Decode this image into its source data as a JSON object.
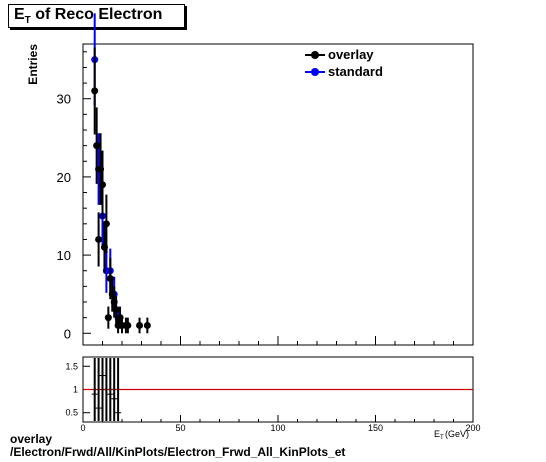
{
  "title": {
    "main": "E",
    "sub": "T",
    "rest": " of Reco Electron"
  },
  "footer": {
    "line1": "overlay",
    "line2": "/Electron/Frwd/All/KinPlots/Electron_Frwd_All_KinPlots_et"
  },
  "chart_data": [
    {
      "type": "scatter",
      "ylabel": "Entries",
      "xlabel": "",
      "xlim": [
        0,
        200
      ],
      "ylim": [
        -1.5,
        37
      ],
      "y_ticks": [
        0,
        10,
        20,
        30
      ],
      "legend": {
        "placement": "top-right",
        "entries": [
          "overlay",
          "standard"
        ]
      },
      "series": [
        {
          "name": "overlay",
          "color": "#000000",
          "points": [
            [
              6,
              31
            ],
            [
              7,
              24
            ],
            [
              8,
              12
            ],
            [
              9,
              21
            ],
            [
              10,
              19
            ],
            [
              11,
              11
            ],
            [
              12,
              14
            ],
            [
              13,
              2
            ],
            [
              14,
              7
            ],
            [
              15,
              5
            ],
            [
              16,
              4
            ],
            [
              17,
              3
            ],
            [
              18,
              1
            ],
            [
              19,
              2
            ],
            [
              20,
              1
            ],
            [
              22,
              1
            ],
            [
              23,
              1
            ],
            [
              29,
              1
            ],
            [
              33,
              1
            ]
          ]
        },
        {
          "name": "standard",
          "color": "#0000ff",
          "points": [
            [
              6,
              35
            ],
            [
              8,
              21
            ],
            [
              10,
              15
            ],
            [
              12,
              8
            ],
            [
              14,
              8
            ],
            [
              16,
              5
            ],
            [
              18,
              2
            ]
          ]
        }
      ]
    },
    {
      "type": "scatter",
      "xlabel": "E_T (GeV)",
      "xlim": [
        0,
        200
      ],
      "ylim": [
        0.3,
        1.7
      ],
      "x_ticks": [
        0,
        50,
        100,
        150,
        200
      ],
      "y_ticks": [
        0.5,
        1,
        1.5
      ],
      "reference_line": 1,
      "reference_color": "#cc0000",
      "points": [
        [
          6,
          0.9
        ],
        [
          8,
          0.6
        ],
        [
          10,
          1.3
        ],
        [
          12,
          1.7
        ],
        [
          14,
          0.9
        ],
        [
          16,
          0.8
        ],
        [
          18,
          0.5
        ]
      ]
    }
  ]
}
